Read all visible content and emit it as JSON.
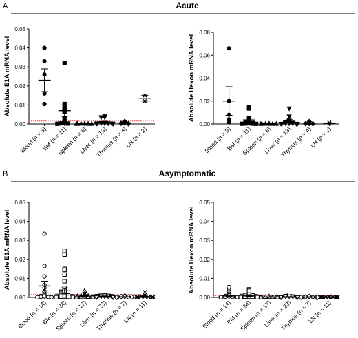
{
  "sections": [
    {
      "letter": "A",
      "title": "Acute"
    },
    {
      "letter": "B",
      "title": "Asymptomatic"
    }
  ],
  "colors": {
    "threshold": "#d62728",
    "points": "#000000"
  },
  "chart_data": [
    {
      "type": "scatter",
      "section": "Acute",
      "ylabel": "Absolute E1A mRNA level",
      "categories": [
        "Blood (n = 5)",
        "BM (n = 11)",
        "Spleen (n = 6)",
        "Liver (n = 13)",
        "Thymus (n = 4)",
        "LN (n = 2)"
      ],
      "marker_shapes": [
        "circle",
        "square",
        "triangle-up",
        "triangle-down",
        "diamond",
        "cross"
      ],
      "filled": true,
      "ylim": [
        0,
        0.05
      ],
      "yticks": [
        "0.00",
        "0.01",
        "0.02",
        "0.03",
        "0.04",
        "0.05"
      ],
      "threshold": 0.0015,
      "mean": [
        0.023,
        0.007,
        0.0002,
        0.0008,
        0.0006,
        0.0135
      ],
      "sem": [
        0.006,
        0.003,
        0.0001,
        0.0004,
        0.0003,
        0.0015
      ],
      "points": [
        [
          0.04,
          0.033,
          0.026,
          0.016,
          0.0105
        ],
        [
          0.032,
          0.0105,
          0.0085,
          0.0075,
          0.0065,
          0.003,
          0.001,
          0.0005,
          0.0003,
          0.0002,
          0.0001
        ],
        [
          0.0002,
          0.0002,
          0.0001,
          0.0001,
          0.0001,
          0.0001
        ],
        [
          0.004,
          0.0035,
          0.0035,
          0.0006,
          0.0005,
          0.0004,
          0.0003,
          0.0003,
          0.0002,
          0.0002,
          0.0001,
          0.0001,
          0.0001
        ],
        [
          0.0013,
          0.0005,
          0.0003,
          0.0002
        ],
        [
          0.015,
          0.012
        ]
      ]
    },
    {
      "type": "scatter",
      "section": "Acute",
      "ylabel": "Absolute Hexon mRNA level",
      "categories": [
        "Blood (n = 5)",
        "BM (n = 11)",
        "Spleen (n = 6)",
        "Liver (n = 13)",
        "Thymus (n = 4)",
        "LN (n = 2)"
      ],
      "marker_shapes": [
        "circle",
        "square",
        "triangle-up",
        "triangle-down",
        "diamond",
        "cross"
      ],
      "filled": true,
      "ylim": [
        0,
        0.08
      ],
      "yticks": [
        "0.00",
        "0.02",
        "0.04",
        "0.06",
        "0.08"
      ],
      "threshold": 0.001,
      "mean": [
        0.02,
        0.0035,
        0.0002,
        0.0025,
        0.0006,
        0.0006
      ],
      "sem": [
        0.0125,
        0.0015,
        0.0001,
        0.0012,
        0.0003,
        0.0003
      ],
      "points": [
        [
          0.066,
          0.02,
          0.008,
          0.004,
          0.0015
        ],
        [
          0.0145,
          0.0135,
          0.005,
          0.0025,
          0.0015,
          0.001,
          0.0006,
          0.0004,
          0.0003,
          0.0002,
          0.0001
        ],
        [
          0.0003,
          0.0002,
          0.0001,
          0.0001,
          0.0001,
          0.0001
        ],
        [
          0.0135,
          0.0065,
          0.003,
          0.002,
          0.0015,
          0.001,
          0.0006,
          0.0004,
          0.0003,
          0.0002,
          0.0002,
          0.0001,
          0.0001
        ],
        [
          0.002,
          0.0005,
          0.0003,
          0.0002
        ],
        [
          0.0012,
          0.0003
        ]
      ]
    },
    {
      "type": "scatter",
      "section": "Asymptomatic",
      "ylabel": "Absolute E1A mRNA level",
      "categories": [
        "Blood (n = 14)",
        "BM (n = 24)",
        "Spleen (n = 17)",
        "Liver (n = 23)",
        "Thymus (n = 7)",
        "LN (n = 11)"
      ],
      "marker_shapes": [
        "circle",
        "square",
        "triangle-up",
        "triangle-down",
        "diamond",
        "cross"
      ],
      "filled": false,
      "ylim": [
        0,
        0.05
      ],
      "yticks": [
        "0.00",
        "0.01",
        "0.02",
        "0.03",
        "0.04",
        "0.05"
      ],
      "threshold": 0.0015,
      "mean": [
        0.006,
        0.0035,
        0.0007,
        0.0006,
        0.0003,
        0.0004
      ],
      "sem": [
        0.0025,
        0.0015,
        0.0003,
        0.0002,
        0.0001,
        0.0002
      ],
      "points": [
        [
          0.0335,
          0.0165,
          0.011,
          0.0065,
          0.005,
          0.003,
          0.002,
          0.0012,
          0.0008,
          0.0005,
          0.0003,
          0.0002,
          0.0001,
          0.0001
        ],
        [
          0.0245,
          0.0225,
          0.015,
          0.0145,
          0.012,
          0.0085,
          0.005,
          0.0035,
          0.003,
          0.0025,
          0.002,
          0.0015,
          0.0012,
          0.001,
          0.0008,
          0.0006,
          0.0005,
          0.0004,
          0.0003,
          0.0002,
          0.0002,
          0.0001,
          0.0001,
          0.0001
        ],
        [
          0.0035,
          0.002,
          0.0012,
          0.001,
          0.0008,
          0.0006,
          0.0005,
          0.0004,
          0.0003,
          0.0003,
          0.0002,
          0.0002,
          0.0001,
          0.0001,
          0.0001,
          0.0001,
          0.0001
        ],
        [
          0.0012,
          0.001,
          0.0009,
          0.0008,
          0.0007,
          0.0006,
          0.0005,
          0.0005,
          0.0004,
          0.0004,
          0.0003,
          0.0003,
          0.0003,
          0.0002,
          0.0002,
          0.0002,
          0.0002,
          0.0001,
          0.0001,
          0.0001,
          0.0001,
          0.0001,
          0.0001
        ],
        [
          0.0008,
          0.0005,
          0.0004,
          0.0003,
          0.0002,
          0.0002,
          0.0001
        ],
        [
          0.0028,
          0.0012,
          0.0006,
          0.0004,
          0.0003,
          0.0002,
          0.0002,
          0.0001,
          0.0001,
          0.0001,
          0.0001
        ]
      ]
    },
    {
      "type": "scatter",
      "section": "Asymptomatic",
      "ylabel": "Absolute Hexon mRNA level",
      "categories": [
        "Blood (n = 14)",
        "BM (n = 24)",
        "Spleen (n = 17)",
        "Liver (n = 23)",
        "Thymus (n = 7)",
        "LN (n = 11)"
      ],
      "marker_shapes": [
        "circle",
        "square",
        "triangle-up",
        "triangle-down",
        "diamond",
        "cross"
      ],
      "filled": false,
      "ylim": [
        0,
        0.05
      ],
      "yticks": [
        "0.00",
        "0.01",
        "0.02",
        "0.03",
        "0.04",
        "0.05"
      ],
      "threshold": 0.001,
      "mean": [
        0.0008,
        0.0008,
        0.0002,
        0.0003,
        0.0002,
        0.0002
      ],
      "sem": [
        0.0004,
        0.0003,
        0.0001,
        0.0001,
        0.0001,
        0.0001
      ],
      "points": [
        [
          0.0055,
          0.004,
          0.0032,
          0.002,
          0.0012,
          0.0008,
          0.0005,
          0.0004,
          0.0003,
          0.0002,
          0.0002,
          0.0001,
          0.0001,
          0.0001
        ],
        [
          0.0042,
          0.0035,
          0.0025,
          0.0015,
          0.0012,
          0.001,
          0.0008,
          0.0006,
          0.0005,
          0.0004,
          0.0003,
          0.0003,
          0.0002,
          0.0002,
          0.0002,
          0.0001,
          0.0001,
          0.0001,
          0.0001,
          0.0001,
          0.0001,
          0.0001,
          0.0001,
          0.0001
        ],
        [
          0.0006,
          0.0004,
          0.0003,
          0.0002,
          0.0002,
          0.0002,
          0.0001,
          0.0001,
          0.0001,
          0.0001,
          0.0001,
          0.0001,
          0.0001,
          0.0001,
          0.0001,
          0.0001,
          0.0001
        ],
        [
          0.0015,
          0.0008,
          0.0006,
          0.0005,
          0.0004,
          0.0003,
          0.0003,
          0.0003,
          0.0002,
          0.0002,
          0.0002,
          0.0002,
          0.0002,
          0.0001,
          0.0001,
          0.0001,
          0.0001,
          0.0001,
          0.0001,
          0.0001,
          0.0001,
          0.0001,
          0.0001
        ],
        [
          0.0005,
          0.0003,
          0.0002,
          0.0002,
          0.0001,
          0.0001,
          0.0001
        ],
        [
          0.0006,
          0.0003,
          0.0002,
          0.0002,
          0.0001,
          0.0001,
          0.0001,
          0.0001,
          0.0001,
          0.0001,
          0.0001
        ]
      ]
    }
  ]
}
